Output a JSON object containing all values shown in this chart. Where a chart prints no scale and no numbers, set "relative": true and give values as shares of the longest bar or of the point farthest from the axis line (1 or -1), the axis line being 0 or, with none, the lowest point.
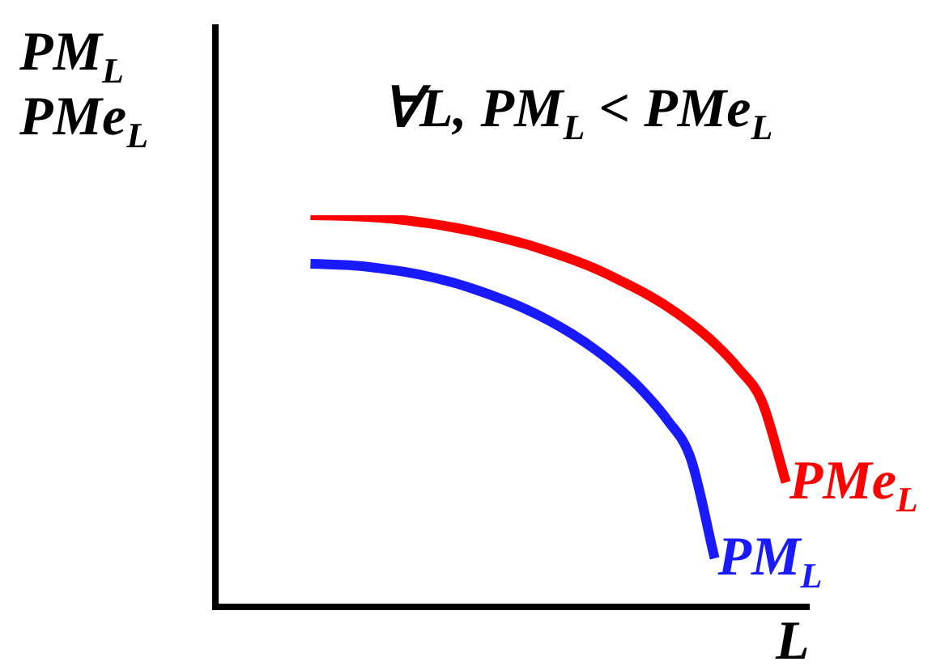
{
  "chart_data": {
    "type": "line",
    "relative": true,
    "legend": false,
    "marker": "none",
    "line_style": "solid",
    "xlabel": "L",
    "ylabel": "PM$_{L}$\nPMe$_{L}$",
    "annotations": [
      "∀L, PM$_{L}$ < PMe$_{L}$"
    ],
    "categories": [
      null,
      null,
      null,
      null,
      null,
      null,
      null,
      null,
      null,
      null,
      null,
      null,
      null,
      null,
      null,
      null,
      null,
      null,
      null,
      null,
      null,
      null,
      null,
      null,
      null,
      null
    ],
    "series": [
      {
        "name": "PMe$_{L}$",
        "color": "#ff0000",
        "values": [
          null,
          null,
          null,
          null,
          1,
          0.999,
          0.997,
          0.993,
          0.987,
          0.979,
          0.969,
          0.957,
          0.943,
          0.927,
          0.908,
          0.887,
          0.863,
          0.834,
          0.803,
          0.767,
          0.724,
          0.673,
          0.609,
          0.523,
          0.318,
          null
        ]
      },
      {
        "name": "PM$_{L}$",
        "color": "#1a1aff",
        "values": [
          null,
          null,
          null,
          null,
          0.876,
          0.874,
          0.871,
          0.864,
          0.855,
          0.843,
          0.828,
          0.809,
          0.787,
          0.762,
          0.732,
          0.697,
          0.656,
          0.608,
          0.55,
          0.478,
          0.378,
          0.124,
          null,
          null,
          null,
          null
        ]
      }
    ]
  }
}
